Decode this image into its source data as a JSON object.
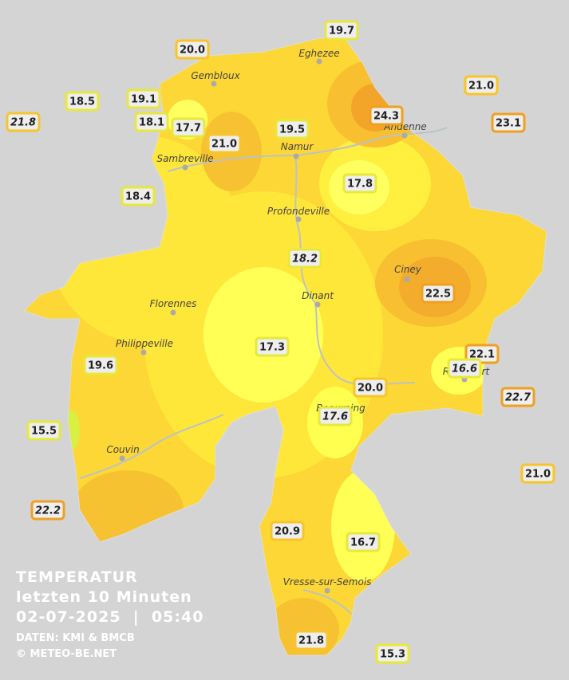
{
  "title": {
    "heading": "TEMPERATUR",
    "period": "letzten 10 Minuten",
    "datetime": "02-07-2025  |  05:40",
    "source": "DATEN: KMI & BMCB",
    "credit": "© METEO-BE.NET"
  },
  "towns": [
    {
      "label": "Eghezee"
    },
    {
      "label": "Gembloux"
    },
    {
      "label": "Andenne"
    },
    {
      "label": "Namur"
    },
    {
      "label": "Sambreville"
    },
    {
      "label": "Profondeville"
    },
    {
      "label": "Ciney"
    },
    {
      "label": "Dinant"
    },
    {
      "label": "Florennes"
    },
    {
      "label": "Philippeville"
    },
    {
      "label": "Rochefort"
    },
    {
      "label": "Beauraing"
    },
    {
      "label": "Couvin"
    },
    {
      "label": "Vresse-sur-Semois"
    }
  ],
  "stations": [
    {
      "label": "19.7"
    },
    {
      "label": "20.0"
    },
    {
      "label": "21.0"
    },
    {
      "label": "18.5"
    },
    {
      "label": "19.1"
    },
    {
      "label": "21.8"
    },
    {
      "label": "18.1"
    },
    {
      "label": "17.7"
    },
    {
      "label": "21.0"
    },
    {
      "label": "19.5"
    },
    {
      "label": "24.3"
    },
    {
      "label": "23.1"
    },
    {
      "label": "17.8"
    },
    {
      "label": "18.4"
    },
    {
      "label": "18.2"
    },
    {
      "label": "22.5"
    },
    {
      "label": "17.3"
    },
    {
      "label": "22.1"
    },
    {
      "label": "16.6"
    },
    {
      "label": "19.6"
    },
    {
      "label": "20.0"
    },
    {
      "label": "22.7"
    },
    {
      "label": "17.6"
    },
    {
      "label": "15.5"
    },
    {
      "label": "21.0"
    },
    {
      "label": "22.2"
    },
    {
      "label": "20.9"
    },
    {
      "label": "16.7"
    },
    {
      "label": "21.8"
    },
    {
      "label": "15.3"
    }
  ]
}
